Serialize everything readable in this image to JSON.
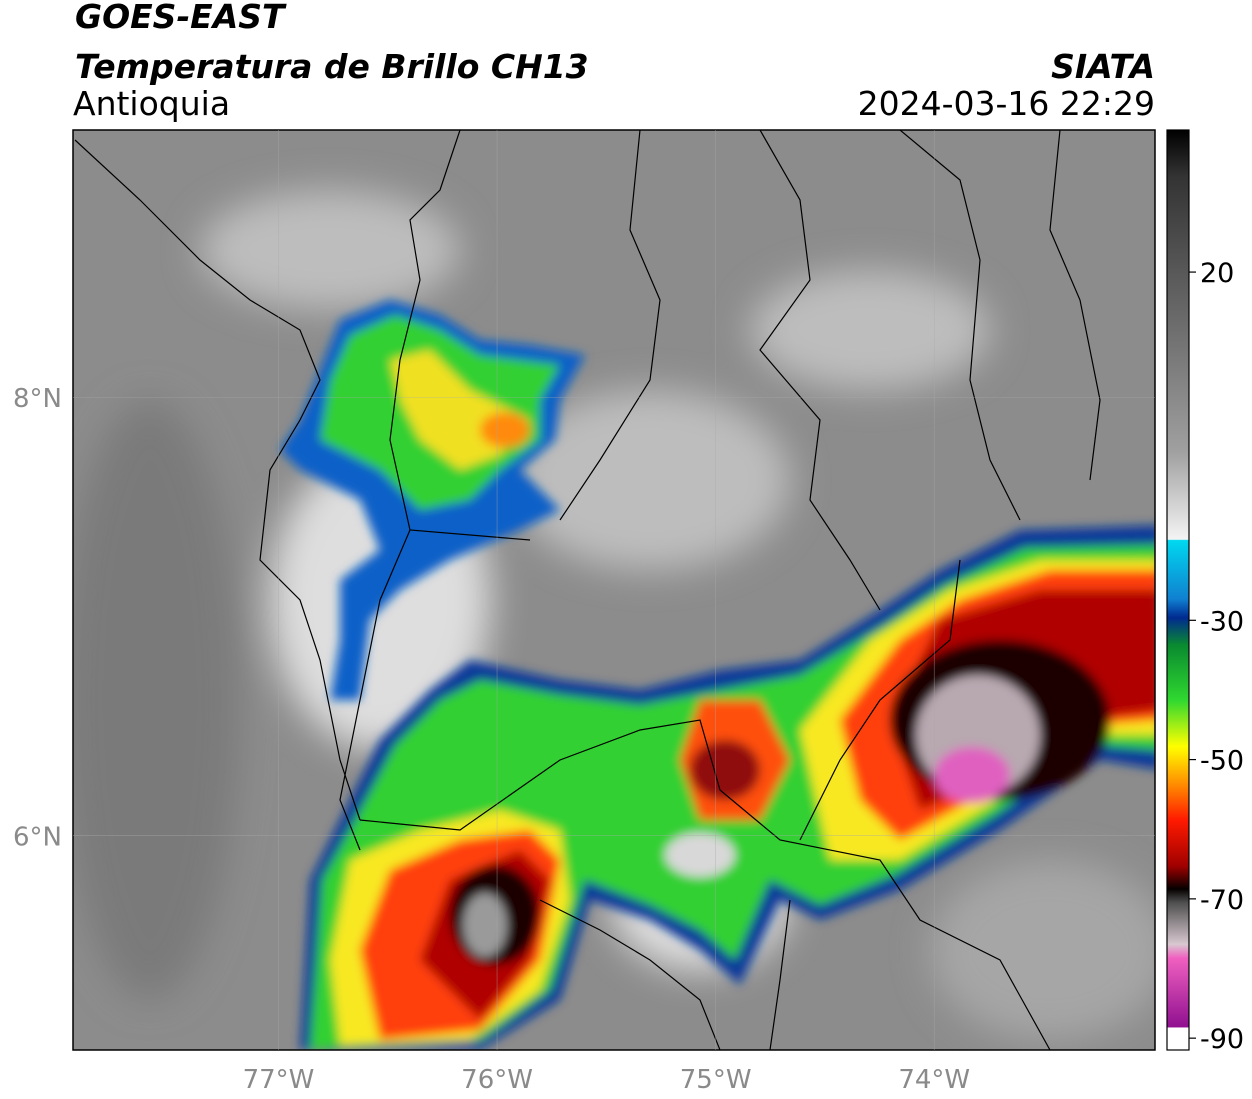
{
  "header": {
    "title": "GOES-EAST",
    "subtitle": "Temperatura de Brillo CH13",
    "region": "Antioquia",
    "source": "SIATA",
    "datetime": "2024-03-16 22:29"
  },
  "map": {
    "xlim": [
      -77.94,
      -72.99
    ],
    "ylim": [
      5.02,
      9.22
    ],
    "xticks": [
      {
        "value": -77,
        "label": "77°W"
      },
      {
        "value": -76,
        "label": "76°W"
      },
      {
        "value": -75,
        "label": "75°W"
      },
      {
        "value": -74,
        "label": "74°W"
      }
    ],
    "yticks": [
      {
        "value": 8,
        "label": "8°N"
      },
      {
        "value": 6,
        "label": "6°N"
      }
    ]
  },
  "colorbar": {
    "lim": [
      -91.7,
      40.4
    ],
    "ticks": [
      20,
      -30,
      -50,
      -70,
      -90
    ]
  }
}
